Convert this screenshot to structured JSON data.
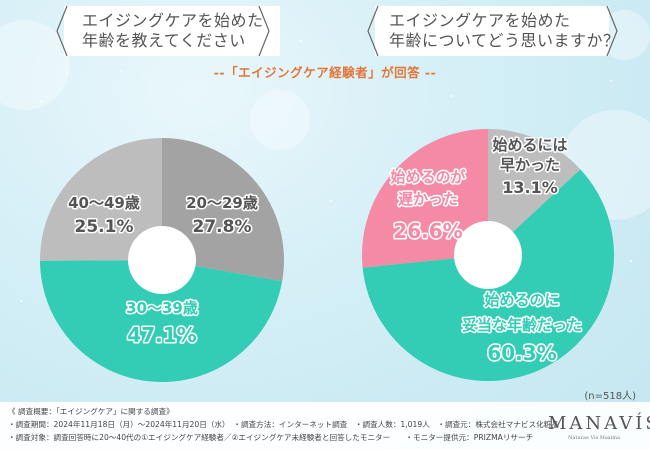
{
  "questions": {
    "left": {
      "line1": "エイジングケアを始めた",
      "line2": "年齢を教えてください"
    },
    "right": {
      "line1": "エイジングケアを始めた",
      "line2": "年齢についてどう思いますか？"
    }
  },
  "subtitle": "--「エイジングケア経験者」が回答 --",
  "sample_size": "(n=518人)",
  "footer": {
    "line1": "《 調査概要：「エイジングケア」に関する調査》",
    "line2": "・調査期間：2024年11月18日（月）～2024年11月20日（水）　・調査方法：インターネット調査　・調査人数：1,019人　・調査元：株式会社マナビス化粧品",
    "line3": "・調査対象：調査回答時に20～40代の①エイジングケア経験者／②エイジングケア未経験者と回答したモニター　　・モニター提供元：PRIZMAリサーチ"
  },
  "logo": {
    "name": "MANAVÍS",
    "tagline": "Naturae Vis Maxima"
  },
  "colors": {
    "teal": "#33ccb4",
    "dark_gray": "#a3a3a3",
    "light_gray": "#bdbdbd",
    "pink": "#f48aa4",
    "orange": "#e0763a"
  },
  "chart_data": [
    {
      "type": "pie",
      "title": "エイジングケアを始めた年齢を教えてください",
      "categories": [
        "20～29歳",
        "30～39歳",
        "40～49歳"
      ],
      "values": [
        27.8,
        47.1,
        25.1
      ],
      "unit": "%",
      "colors": [
        "#a3a3a3",
        "#33ccb4",
        "#bdbdbd"
      ],
      "labels": {
        "a": {
          "name": "20～29歳",
          "pct": "27.8%"
        },
        "b": {
          "name": "30～39歳",
          "pct": "47.1%"
        },
        "c": {
          "name": "40～49歳",
          "pct": "25.1%"
        }
      },
      "donut": true
    },
    {
      "type": "pie",
      "title": "エイジングケアを始めた年齢についてどう思いますか？",
      "categories": [
        "始めるには早かった",
        "始めるのに妥当な年齢だった",
        "始めるのが遅かった"
      ],
      "values": [
        13.1,
        60.3,
        26.6
      ],
      "unit": "%",
      "colors": [
        "#bdbdbd",
        "#33ccb4",
        "#f48aa4"
      ],
      "labels": {
        "a1": "始めるには",
        "a2": "早かった",
        "apct": "13.1%",
        "b1": "始めるのに",
        "b2": "妥当な年齢だった",
        "bpct": "60.3%",
        "c1": "始めるのが",
        "c2": "遅かった",
        "cpct": "26.6%"
      },
      "n": 518,
      "donut": true
    }
  ]
}
